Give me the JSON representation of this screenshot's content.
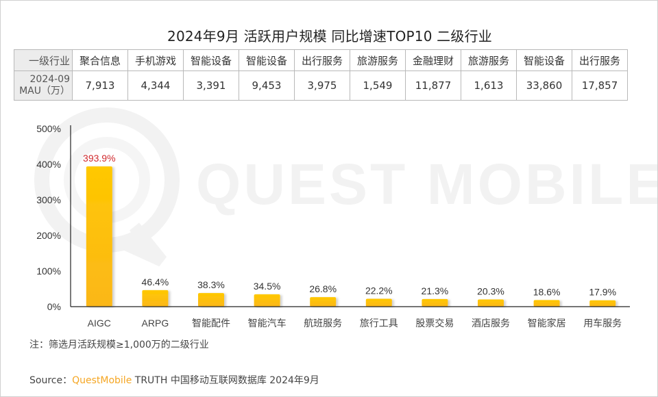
{
  "title": "2024年9月 活跃用户规模 同比增速TOP10 二级行业",
  "table": {
    "row_header_1": "一级行业",
    "row_header_2_line1": "2024-09",
    "row_header_2_line2": "MAU（万）",
    "industries": [
      "聚合信息",
      "手机游戏",
      "智能设备",
      "智能设备",
      "出行服务",
      "旅游服务",
      "金融理财",
      "旅游服务",
      "智能设备",
      "出行服务"
    ],
    "mau": [
      "7,913",
      "4,344",
      "3,391",
      "9,453",
      "3,975",
      "1,549",
      "11,877",
      "1,613",
      "33,860",
      "17,857"
    ]
  },
  "watermark": "QUEST MOBILE",
  "chart_data": {
    "type": "bar",
    "title": "2024年9月 活跃用户规模 同比增速TOP10 二级行业",
    "xlabel": "",
    "ylabel": "",
    "categories": [
      "AIGC",
      "ARPG",
      "智能配件",
      "智能汽车",
      "航班服务",
      "旅行工具",
      "股票交易",
      "酒店服务",
      "智能家居",
      "用车服务"
    ],
    "values": [
      393.9,
      46.4,
      38.3,
      34.5,
      26.8,
      22.2,
      21.3,
      20.3,
      18.6,
      17.9
    ],
    "value_labels": [
      "393.9%",
      "46.4%",
      "38.3%",
      "34.5%",
      "26.8%",
      "22.2%",
      "21.3%",
      "20.3%",
      "18.6%",
      "17.9%"
    ],
    "ylim": [
      0,
      500
    ],
    "yticks": [
      0,
      100,
      200,
      300,
      400,
      500
    ],
    "ytick_labels": [
      "0%",
      "100%",
      "200%",
      "300%",
      "400%",
      "500%"
    ],
    "grid": false,
    "legend": "none",
    "bar_color_top": "#ffc800",
    "bar_color_bottom": "#fbb71a",
    "highlight_label_color": "#d0282c",
    "label_color": "#333333"
  },
  "footnote": "注：筛选月活跃规模≥1,000万的二级行业",
  "source": {
    "prefix": "Source：",
    "brand": "QuestMobile",
    "rest": " TRUTH 中国移动互联网数据库 2024年9月"
  }
}
